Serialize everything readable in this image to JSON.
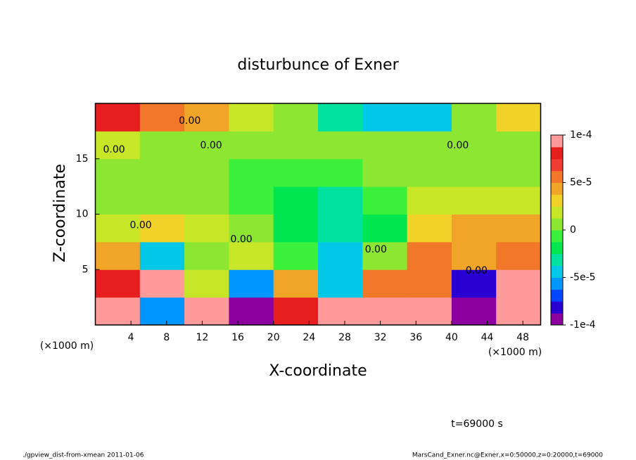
{
  "chart_data": {
    "type": "heatmap",
    "title": "disturbunce of Exner",
    "x_label": "X-coordinate",
    "y_label": "Z-coordinate",
    "unit_labels": [
      "(×1000 m)",
      "(×1000 m)"
    ],
    "time_label": "t=69000 s",
    "footer_left": "./gpview_dist-from-xmean  2011-01-06",
    "footer_right": "MarsCand_Exner.nc@Exner,x=0:50000,z=0:20000,t=69000",
    "x": [
      2.5,
      7.5,
      12.5,
      17.5,
      22.5,
      27.5,
      32.5,
      37.5,
      42.5,
      47.5
    ],
    "y": [
      1.25,
      3.75,
      6.25,
      8.75,
      11.25,
      13.75,
      16.25,
      18.75
    ],
    "values": [
      [
        0.0001,
        -6e-05,
        0.0001,
        -0.0001,
        8e-05,
        0.0001,
        9e-05,
        0.0001,
        -9e-05,
        0.0001
      ],
      [
        8e-05,
        0.0001,
        2e-05,
        -6e-05,
        4e-05,
        -4e-05,
        6e-05,
        5e-05,
        -8e-05,
        0.0001
      ],
      [
        4e-05,
        -5e-05,
        1e-05,
        2e-05,
        -1e-05,
        -5e-05,
        0,
        5e-05,
        4e-05,
        5e-05
      ],
      [
        2e-05,
        3e-05,
        2e-05,
        0,
        -2e-05,
        -3e-05,
        -2e-05,
        3e-05,
        4e-05,
        4e-05
      ],
      [
        1e-05,
        1e-05,
        0,
        -1e-05,
        -2e-05,
        -3e-05,
        -1e-05,
        2e-05,
        2e-05,
        2e-05
      ],
      [
        1e-05,
        1e-05,
        0,
        -1e-05,
        -1e-05,
        -1e-05,
        0,
        1e-05,
        1e-05,
        1e-05
      ],
      [
        2e-05,
        1e-05,
        1e-05,
        1e-05,
        5e-06,
        5e-06,
        0,
        0,
        1e-05,
        1e-05
      ],
      [
        8e-05,
        6e-05,
        4e-05,
        2e-05,
        0,
        -3e-05,
        -5e-05,
        -4e-05,
        0,
        3e-05
      ]
    ],
    "xlim": [
      0,
      50
    ],
    "xticks": [
      4,
      8,
      12,
      16,
      20,
      24,
      28,
      32,
      36,
      40,
      44,
      48
    ],
    "ylim": [
      0,
      20
    ],
    "yticks": [
      5,
      10,
      15
    ],
    "clim": [
      -0.0001,
      0.0001
    ],
    "cticks": [
      {
        "value": 0.0001,
        "label": "1e-4"
      },
      {
        "value": 5e-05,
        "label": "5e-5"
      },
      0,
      {
        "value": -5e-05,
        "label": "-5e-5"
      },
      {
        "value": -0.0001,
        "label": "-1e-4"
      }
    ],
    "colors": [
      "#8c00a0",
      "#2800d2",
      "#0046ff",
      "#0096ff",
      "#00c8e6",
      "#00e1a0",
      "#00e650",
      "#3cf03c",
      "#8ce632",
      "#c8e628",
      "#f0d228",
      "#f0a528",
      "#f07828",
      "#f03c32",
      "#e61e1e",
      "#ff9a9a"
    ],
    "contour_labels": [
      {
        "text": "0.00",
        "x": 10.6,
        "y": 18.4
      },
      {
        "text": "0.00",
        "x": 13.0,
        "y": 16.2
      },
      {
        "text": "0.00",
        "x": 2.1,
        "y": 15.8
      },
      {
        "text": "0.00",
        "x": 40.7,
        "y": 16.2
      },
      {
        "text": "0.00",
        "x": 16.4,
        "y": 7.7
      },
      {
        "text": "0.00",
        "x": 5.1,
        "y": 9.0
      },
      {
        "text": "0.00",
        "x": 31.5,
        "y": 6.8
      },
      {
        "text": "0.00",
        "x": 42.8,
        "y": 4.9
      }
    ]
  }
}
